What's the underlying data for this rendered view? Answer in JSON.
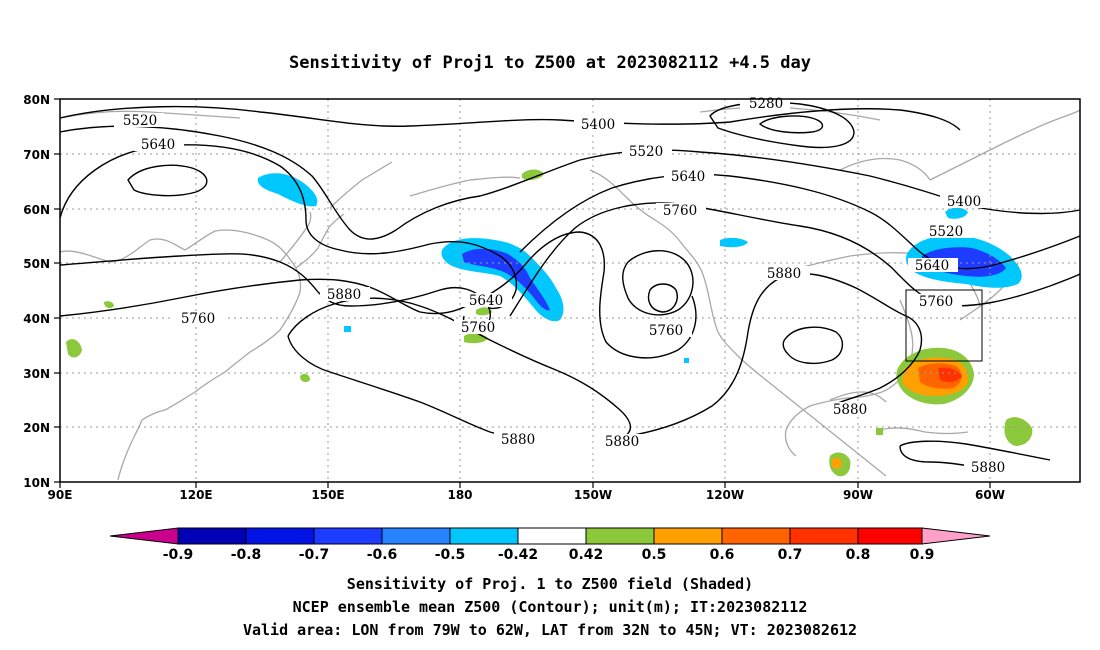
{
  "title": "Sensitivity of Proj1 to Z500 at 2023082112 +4.5 day",
  "axes": {
    "lat_ticks": [
      "80N",
      "70N",
      "60N",
      "50N",
      "40N",
      "30N",
      "20N",
      "10N"
    ],
    "lon_ticks": [
      "90E",
      "120E",
      "150E",
      "180",
      "150W",
      "120W",
      "90W",
      "60W"
    ]
  },
  "contour_labels": {
    "c5280": "5280",
    "c5400a": "5400",
    "c5400b": "5400",
    "c5520a": "5520",
    "c5520b": "5520",
    "c5520c": "5520",
    "c5640a": "5640",
    "c5640b": "5640",
    "c5640c": "5640",
    "c5640d": "5640",
    "c5760a": "5760",
    "c5760b": "5760",
    "c5760c": "5760",
    "c5760d": "5760",
    "c5760e": "5760",
    "c5880a": "5880",
    "c5880b": "5880",
    "c5880c": "5880",
    "c5880d": "5880",
    "c5880e": "5880",
    "c5880f": "5880"
  },
  "colorbar": {
    "labels": [
      "-0.9",
      "-0.8",
      "-0.7",
      "-0.6",
      "-0.5",
      "-0.42",
      "0.42",
      "0.5",
      "0.6",
      "0.7",
      "0.8",
      "0.9"
    ],
    "colors": [
      "#c8008c",
      "#0000b4",
      "#0014e6",
      "#1e3cff",
      "#2882ff",
      "#00c8ff",
      "#ffffff",
      "#8cc83c",
      "#ffa000",
      "#ff6400",
      "#ff3200",
      "#ff0000",
      "#ffa0c8"
    ]
  },
  "captions": {
    "line1": "Sensitivity of Proj. 1 to Z500 field (Shaded)",
    "line2": "NCEP ensemble mean Z500 (Contour); unit(m); IT:2023082112",
    "line3": "Valid area: LON from 79W to 62W, LAT from 32N to 45N; VT: 2023082612"
  }
}
